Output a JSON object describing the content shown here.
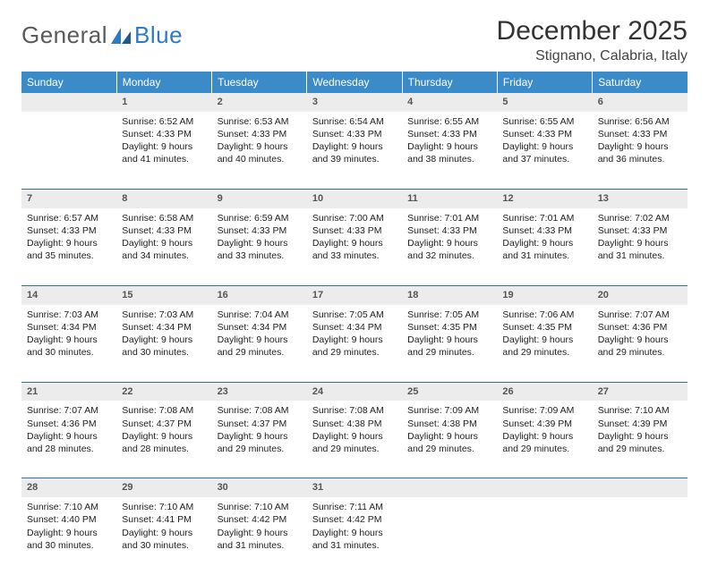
{
  "brand": {
    "word1": "General",
    "word2": "Blue"
  },
  "title": "December 2025",
  "location": "Stignano, Calabria, Italy",
  "colors": {
    "header_bg": "#3b8bc9",
    "header_text": "#ffffff",
    "daynum_bg": "#ececec",
    "row_divider": "#2f6fa8",
    "logo_gray": "#5a5a5a",
    "logo_blue": "#2f7bbf"
  },
  "weekdays": [
    "Sunday",
    "Monday",
    "Tuesday",
    "Wednesday",
    "Thursday",
    "Friday",
    "Saturday"
  ],
  "weeks": [
    {
      "nums": [
        "",
        "1",
        "2",
        "3",
        "4",
        "5",
        "6"
      ],
      "cells": [
        null,
        {
          "sunrise": "Sunrise: 6:52 AM",
          "sunset": "Sunset: 4:33 PM",
          "day1": "Daylight: 9 hours",
          "day2": "and 41 minutes."
        },
        {
          "sunrise": "Sunrise: 6:53 AM",
          "sunset": "Sunset: 4:33 PM",
          "day1": "Daylight: 9 hours",
          "day2": "and 40 minutes."
        },
        {
          "sunrise": "Sunrise: 6:54 AM",
          "sunset": "Sunset: 4:33 PM",
          "day1": "Daylight: 9 hours",
          "day2": "and 39 minutes."
        },
        {
          "sunrise": "Sunrise: 6:55 AM",
          "sunset": "Sunset: 4:33 PM",
          "day1": "Daylight: 9 hours",
          "day2": "and 38 minutes."
        },
        {
          "sunrise": "Sunrise: 6:55 AM",
          "sunset": "Sunset: 4:33 PM",
          "day1": "Daylight: 9 hours",
          "day2": "and 37 minutes."
        },
        {
          "sunrise": "Sunrise: 6:56 AM",
          "sunset": "Sunset: 4:33 PM",
          "day1": "Daylight: 9 hours",
          "day2": "and 36 minutes."
        }
      ]
    },
    {
      "nums": [
        "7",
        "8",
        "9",
        "10",
        "11",
        "12",
        "13"
      ],
      "cells": [
        {
          "sunrise": "Sunrise: 6:57 AM",
          "sunset": "Sunset: 4:33 PM",
          "day1": "Daylight: 9 hours",
          "day2": "and 35 minutes."
        },
        {
          "sunrise": "Sunrise: 6:58 AM",
          "sunset": "Sunset: 4:33 PM",
          "day1": "Daylight: 9 hours",
          "day2": "and 34 minutes."
        },
        {
          "sunrise": "Sunrise: 6:59 AM",
          "sunset": "Sunset: 4:33 PM",
          "day1": "Daylight: 9 hours",
          "day2": "and 33 minutes."
        },
        {
          "sunrise": "Sunrise: 7:00 AM",
          "sunset": "Sunset: 4:33 PM",
          "day1": "Daylight: 9 hours",
          "day2": "and 33 minutes."
        },
        {
          "sunrise": "Sunrise: 7:01 AM",
          "sunset": "Sunset: 4:33 PM",
          "day1": "Daylight: 9 hours",
          "day2": "and 32 minutes."
        },
        {
          "sunrise": "Sunrise: 7:01 AM",
          "sunset": "Sunset: 4:33 PM",
          "day1": "Daylight: 9 hours",
          "day2": "and 31 minutes."
        },
        {
          "sunrise": "Sunrise: 7:02 AM",
          "sunset": "Sunset: 4:33 PM",
          "day1": "Daylight: 9 hours",
          "day2": "and 31 minutes."
        }
      ]
    },
    {
      "nums": [
        "14",
        "15",
        "16",
        "17",
        "18",
        "19",
        "20"
      ],
      "cells": [
        {
          "sunrise": "Sunrise: 7:03 AM",
          "sunset": "Sunset: 4:34 PM",
          "day1": "Daylight: 9 hours",
          "day2": "and 30 minutes."
        },
        {
          "sunrise": "Sunrise: 7:03 AM",
          "sunset": "Sunset: 4:34 PM",
          "day1": "Daylight: 9 hours",
          "day2": "and 30 minutes."
        },
        {
          "sunrise": "Sunrise: 7:04 AM",
          "sunset": "Sunset: 4:34 PM",
          "day1": "Daylight: 9 hours",
          "day2": "and 29 minutes."
        },
        {
          "sunrise": "Sunrise: 7:05 AM",
          "sunset": "Sunset: 4:34 PM",
          "day1": "Daylight: 9 hours",
          "day2": "and 29 minutes."
        },
        {
          "sunrise": "Sunrise: 7:05 AM",
          "sunset": "Sunset: 4:35 PM",
          "day1": "Daylight: 9 hours",
          "day2": "and 29 minutes."
        },
        {
          "sunrise": "Sunrise: 7:06 AM",
          "sunset": "Sunset: 4:35 PM",
          "day1": "Daylight: 9 hours",
          "day2": "and 29 minutes."
        },
        {
          "sunrise": "Sunrise: 7:07 AM",
          "sunset": "Sunset: 4:36 PM",
          "day1": "Daylight: 9 hours",
          "day2": "and 29 minutes."
        }
      ]
    },
    {
      "nums": [
        "21",
        "22",
        "23",
        "24",
        "25",
        "26",
        "27"
      ],
      "cells": [
        {
          "sunrise": "Sunrise: 7:07 AM",
          "sunset": "Sunset: 4:36 PM",
          "day1": "Daylight: 9 hours",
          "day2": "and 28 minutes."
        },
        {
          "sunrise": "Sunrise: 7:08 AM",
          "sunset": "Sunset: 4:37 PM",
          "day1": "Daylight: 9 hours",
          "day2": "and 28 minutes."
        },
        {
          "sunrise": "Sunrise: 7:08 AM",
          "sunset": "Sunset: 4:37 PM",
          "day1": "Daylight: 9 hours",
          "day2": "and 29 minutes."
        },
        {
          "sunrise": "Sunrise: 7:08 AM",
          "sunset": "Sunset: 4:38 PM",
          "day1": "Daylight: 9 hours",
          "day2": "and 29 minutes."
        },
        {
          "sunrise": "Sunrise: 7:09 AM",
          "sunset": "Sunset: 4:38 PM",
          "day1": "Daylight: 9 hours",
          "day2": "and 29 minutes."
        },
        {
          "sunrise": "Sunrise: 7:09 AM",
          "sunset": "Sunset: 4:39 PM",
          "day1": "Daylight: 9 hours",
          "day2": "and 29 minutes."
        },
        {
          "sunrise": "Sunrise: 7:10 AM",
          "sunset": "Sunset: 4:39 PM",
          "day1": "Daylight: 9 hours",
          "day2": "and 29 minutes."
        }
      ]
    },
    {
      "nums": [
        "28",
        "29",
        "30",
        "31",
        "",
        "",
        ""
      ],
      "cells": [
        {
          "sunrise": "Sunrise: 7:10 AM",
          "sunset": "Sunset: 4:40 PM",
          "day1": "Daylight: 9 hours",
          "day2": "and 30 minutes."
        },
        {
          "sunrise": "Sunrise: 7:10 AM",
          "sunset": "Sunset: 4:41 PM",
          "day1": "Daylight: 9 hours",
          "day2": "and 30 minutes."
        },
        {
          "sunrise": "Sunrise: 7:10 AM",
          "sunset": "Sunset: 4:42 PM",
          "day1": "Daylight: 9 hours",
          "day2": "and 31 minutes."
        },
        {
          "sunrise": "Sunrise: 7:11 AM",
          "sunset": "Sunset: 4:42 PM",
          "day1": "Daylight: 9 hours",
          "day2": "and 31 minutes."
        },
        null,
        null,
        null
      ]
    }
  ]
}
